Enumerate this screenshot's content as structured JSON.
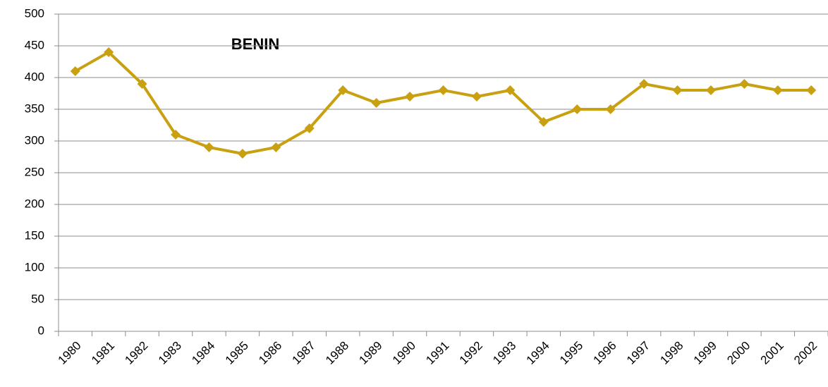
{
  "chart_data": {
    "type": "line",
    "title": "BENIN",
    "categories": [
      "1980",
      "1981",
      "1982",
      "1983",
      "1984",
      "1985",
      "1986",
      "1987",
      "1988",
      "1989",
      "1990",
      "1991",
      "1992",
      "1993",
      "1994",
      "1995",
      "1996",
      "1997",
      "1998",
      "1999",
      "2000",
      "2001",
      "2002"
    ],
    "series": [
      {
        "color": "#c9a010",
        "values": [
          410,
          440,
          390,
          310,
          290,
          280,
          290,
          320,
          380,
          360,
          370,
          380,
          370,
          380,
          330,
          350,
          350,
          390,
          380,
          380,
          390,
          380,
          380
        ]
      }
    ],
    "ylim": [
      0,
      500
    ],
    "yticks": [
      0,
      50,
      100,
      150,
      200,
      250,
      300,
      350,
      400,
      450,
      500
    ],
    "grid": true
  }
}
